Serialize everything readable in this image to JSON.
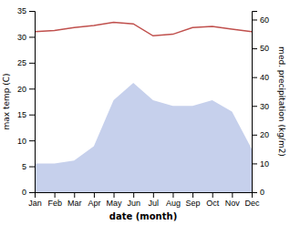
{
  "chart_data": {
    "type": "line",
    "x_label": "date (month)",
    "y_label": "max temp (C)",
    "y2_label": "med. precipitation (kg/m2)",
    "categories": [
      "Jan",
      "Feb",
      "Mar",
      "Apr",
      "May",
      "Jun",
      "Jul",
      "Aug",
      "Sep",
      "Oct",
      "Nov",
      "Dec"
    ],
    "series": [
      {
        "type": "area",
        "axis": "y2",
        "color": "#c6d0ec",
        "values": [
          10,
          10,
          11,
          16,
          32,
          38,
          32,
          30,
          30,
          32,
          28,
          15
        ]
      },
      {
        "type": "line",
        "color": "#c0504d",
        "values": [
          31.0,
          31.2,
          31.8,
          32.2,
          32.8,
          32.5,
          30.2,
          30.5,
          31.8,
          32.0,
          31.5,
          31.0
        ]
      }
    ],
    "ylim": [
      0,
      35
    ],
    "yticks": [
      0,
      5,
      10,
      15,
      20,
      25,
      30,
      35
    ],
    "y2lim": [
      0,
      63
    ],
    "y2ticks": [
      0,
      10,
      20,
      30,
      40,
      50,
      60
    ]
  }
}
